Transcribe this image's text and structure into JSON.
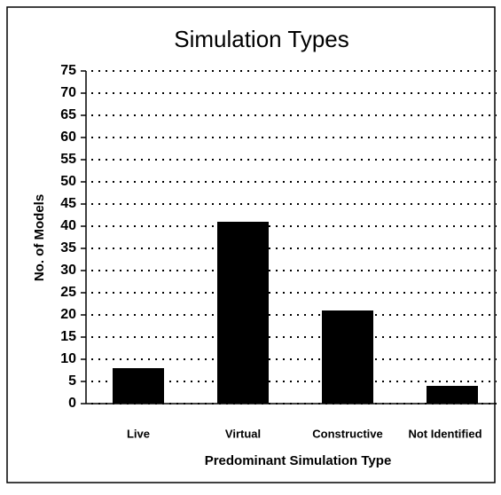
{
  "chart_data": {
    "type": "bar",
    "title": "Simulation Types",
    "x_label": "Predominant Simulation Type",
    "y_label": "No. of Models",
    "categories": [
      "Live",
      "Virtual",
      "Constructive",
      "Not Identified"
    ],
    "values": [
      8,
      41,
      21,
      4
    ],
    "color": "#000000",
    "ylim": [
      0,
      75
    ],
    "yticks": [
      0,
      5,
      10,
      15,
      20,
      25,
      30,
      35,
      40,
      45,
      50,
      55,
      60,
      65,
      70,
      75
    ],
    "grid": true
  }
}
